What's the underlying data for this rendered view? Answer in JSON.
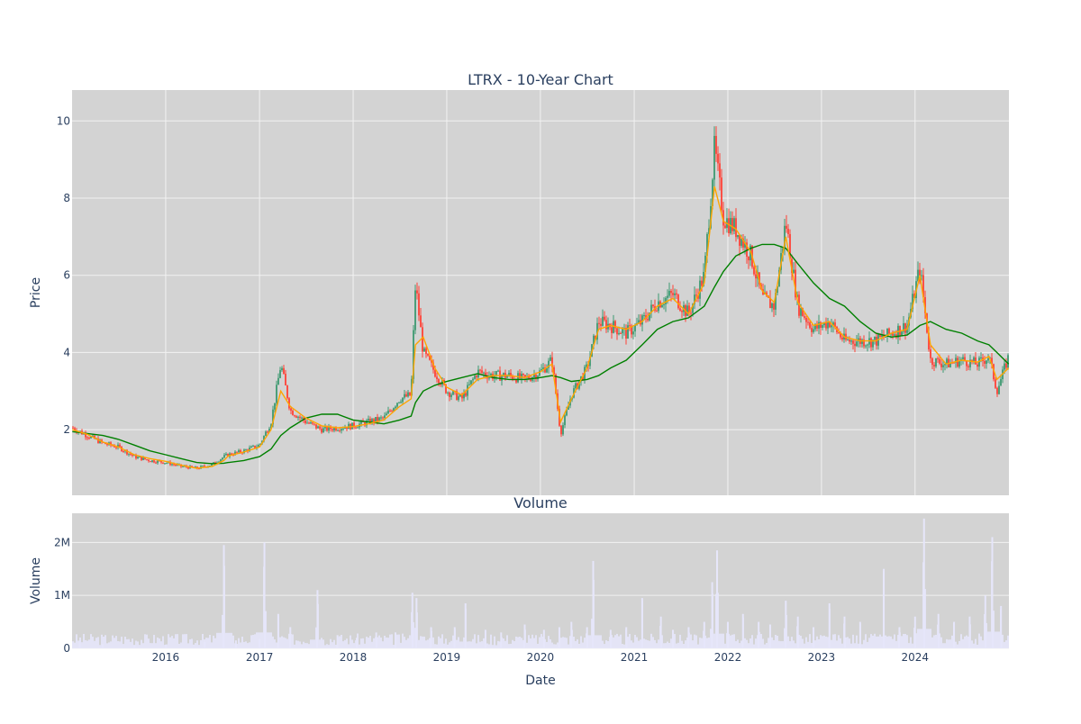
{
  "chart_data": [
    {
      "type": "candlestick",
      "title": "LTRX - 10-Year Chart",
      "xlabel": "",
      "ylabel": "Price",
      "ylim": [
        0.3,
        10.8
      ],
      "y_ticks": [
        2,
        4,
        6,
        8,
        10
      ],
      "grid": true,
      "legend": "none",
      "colors": {
        "up": "#3d9970",
        "down": "#ff4136",
        "ma_short": "#ffa500",
        "ma_long": "#008000",
        "background": "#d3d3d3",
        "grid": "#f2f2f2"
      },
      "x": [
        "2015-01-02",
        "2015-03-01",
        "2015-05-01",
        "2015-07-01",
        "2015-09-01",
        "2015-11-01",
        "2016-01-01",
        "2016-03-01",
        "2016-05-01",
        "2016-07-01",
        "2016-08-15",
        "2016-09-01",
        "2016-11-01",
        "2017-01-01",
        "2017-02-15",
        "2017-03-25",
        "2017-05-01",
        "2017-07-01",
        "2017-09-01",
        "2017-11-01",
        "2018-01-01",
        "2018-03-01",
        "2018-05-01",
        "2018-07-01",
        "2018-08-15",
        "2018-09-01",
        "2018-10-01",
        "2018-11-15",
        "2019-01-01",
        "2019-03-01",
        "2019-05-01",
        "2019-07-01",
        "2019-09-01",
        "2019-11-01",
        "2020-01-01",
        "2020-02-15",
        "2020-03-20",
        "2020-05-01",
        "2020-07-01",
        "2020-08-15",
        "2020-10-01",
        "2020-12-01",
        "2021-02-01",
        "2021-04-01",
        "2021-06-01",
        "2021-08-01",
        "2021-10-01",
        "2021-11-10",
        "2021-12-15",
        "2022-02-01",
        "2022-04-01",
        "2022-05-15",
        "2022-07-01",
        "2022-08-15",
        "2022-10-01",
        "2022-12-01",
        "2023-02-01",
        "2023-04-01",
        "2023-06-01",
        "2023-08-01",
        "2023-10-01",
        "2023-12-01",
        "2024-01-20",
        "2024-03-01",
        "2024-05-01",
        "2024-07-01",
        "2024-09-01",
        "2024-10-15",
        "2024-11-15",
        "2024-12-31"
      ],
      "close": [
        2.05,
        1.85,
        1.65,
        1.55,
        1.3,
        1.2,
        1.15,
        1.05,
        1.0,
        1.1,
        1.3,
        1.35,
        1.45,
        1.6,
        2.2,
        3.7,
        2.5,
        2.2,
        2.0,
        2.05,
        2.1,
        2.2,
        2.3,
        2.8,
        2.9,
        5.8,
        4.0,
        3.5,
        3.0,
        2.8,
        3.5,
        3.4,
        3.4,
        3.3,
        3.5,
        3.8,
        1.9,
        2.9,
        3.6,
        4.8,
        4.7,
        4.5,
        4.8,
        5.3,
        5.5,
        5.0,
        6.0,
        9.3,
        7.5,
        7.2,
        6.5,
        5.4,
        5.2,
        7.4,
        5.2,
        4.6,
        4.8,
        4.3,
        4.3,
        4.3,
        4.5,
        4.7,
        6.2,
        3.8,
        3.7,
        3.8,
        3.7,
        3.9,
        3.0,
        3.9
      ],
      "ma_short": [
        2.0,
        1.88,
        1.68,
        1.55,
        1.35,
        1.25,
        1.18,
        1.08,
        1.0,
        1.05,
        1.2,
        1.32,
        1.42,
        1.55,
        2.0,
        3.0,
        2.6,
        2.3,
        2.1,
        2.05,
        2.08,
        2.15,
        2.25,
        2.6,
        2.8,
        4.2,
        4.4,
        3.6,
        3.1,
        2.9,
        3.3,
        3.4,
        3.4,
        3.35,
        3.5,
        3.7,
        2.2,
        2.8,
        3.6,
        4.6,
        4.7,
        4.6,
        4.8,
        5.2,
        5.4,
        5.0,
        5.8,
        8.3,
        7.4,
        7.2,
        6.6,
        5.6,
        5.3,
        7.0,
        5.3,
        4.7,
        4.8,
        4.4,
        4.3,
        4.3,
        4.5,
        4.6,
        6.0,
        4.2,
        3.7,
        3.8,
        3.75,
        3.9,
        3.3,
        3.6
      ],
      "ma_long": [
        1.95,
        1.9,
        1.85,
        1.75,
        1.6,
        1.45,
        1.35,
        1.25,
        1.15,
        1.12,
        1.13,
        1.15,
        1.2,
        1.3,
        1.5,
        1.85,
        2.05,
        2.3,
        2.4,
        2.4,
        2.25,
        2.2,
        2.15,
        2.25,
        2.35,
        2.7,
        3.0,
        3.15,
        3.25,
        3.35,
        3.45,
        3.35,
        3.3,
        3.3,
        3.35,
        3.4,
        3.35,
        3.25,
        3.3,
        3.4,
        3.6,
        3.8,
        4.2,
        4.6,
        4.8,
        4.9,
        5.2,
        5.7,
        6.1,
        6.5,
        6.7,
        6.8,
        6.8,
        6.7,
        6.3,
        5.8,
        5.4,
        5.2,
        4.8,
        4.5,
        4.4,
        4.45,
        4.7,
        4.8,
        4.6,
        4.5,
        4.3,
        4.2,
        4.0,
        3.7
      ]
    },
    {
      "type": "bar",
      "title": "Volume",
      "xlabel": "Date",
      "ylabel": "Volume",
      "ylim": [
        0,
        2550000
      ],
      "y_tick_values": [
        0,
        1000000,
        2000000
      ],
      "y_tick_labels": [
        "0",
        "1M",
        "2M"
      ],
      "x_ticks": [
        "2016",
        "2017",
        "2018",
        "2019",
        "2020",
        "2021",
        "2022",
        "2023",
        "2024"
      ],
      "grid": true,
      "colors": {
        "bar": "#e6e6fa",
        "background": "#d3d3d3"
      },
      "x": [
        "2015-02-01",
        "2015-05-01",
        "2015-09-01",
        "2016-01-01",
        "2016-06-01",
        "2016-08-15",
        "2016-10-01",
        "2017-01-01",
        "2017-01-20",
        "2017-03-15",
        "2017-05-01",
        "2017-08-15",
        "2017-11-01",
        "2018-01-15",
        "2018-04-01",
        "2018-06-15",
        "2018-08-20",
        "2018-09-05",
        "2018-11-01",
        "2019-02-01",
        "2019-03-15",
        "2019-06-01",
        "2019-08-01",
        "2019-11-01",
        "2020-01-15",
        "2020-03-15",
        "2020-05-01",
        "2020-07-01",
        "2020-07-25",
        "2020-10-01",
        "2020-12-01",
        "2021-02-01",
        "2021-04-15",
        "2021-06-01",
        "2021-08-01",
        "2021-10-01",
        "2021-11-01",
        "2021-11-20",
        "2022-01-01",
        "2022-03-01",
        "2022-05-01",
        "2022-06-15",
        "2022-08-15",
        "2022-10-01",
        "2022-12-01",
        "2023-02-01",
        "2023-04-01",
        "2023-06-01",
        "2023-09-01",
        "2023-11-01",
        "2024-01-01",
        "2024-02-05",
        "2024-04-01",
        "2024-06-01",
        "2024-08-01",
        "2024-10-01",
        "2024-10-28",
        "2024-12-01"
      ],
      "values": [
        150000,
        80000,
        60000,
        70000,
        120000,
        1950000,
        150000,
        180000,
        2000000,
        650000,
        400000,
        1100000,
        250000,
        200000,
        300000,
        300000,
        1050000,
        950000,
        400000,
        400000,
        850000,
        350000,
        300000,
        450000,
        350000,
        400000,
        500000,
        400000,
        1650000,
        350000,
        400000,
        950000,
        600000,
        350000,
        400000,
        500000,
        1250000,
        1850000,
        500000,
        650000,
        500000,
        450000,
        900000,
        600000,
        400000,
        850000,
        600000,
        500000,
        1500000,
        400000,
        600000,
        2450000,
        650000,
        500000,
        600000,
        1000000,
        2100000,
        800000
      ]
    }
  ]
}
